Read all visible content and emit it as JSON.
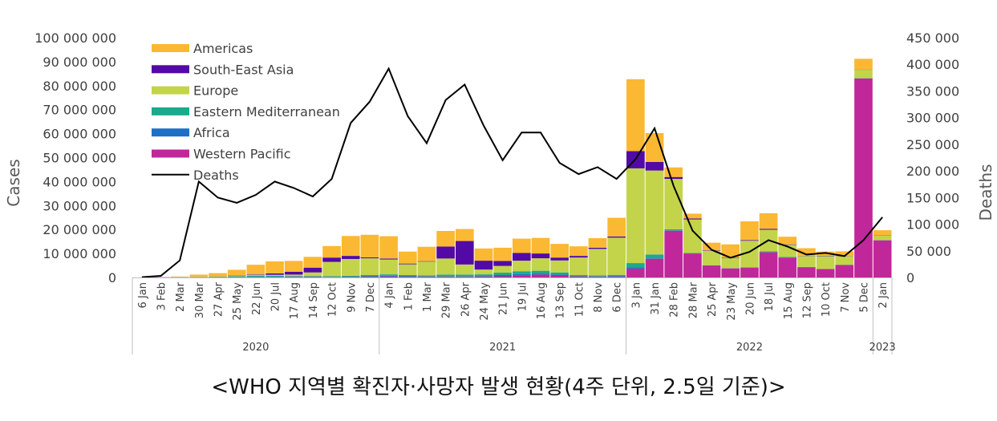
{
  "caption": "<WHO 지역별 확진자·사망자 발생 현황(4주 단위, 2.5일 기준)>",
  "chart_data": {
    "type": "bar",
    "stacked": true,
    "xlabel": "",
    "ylabel": "Cases",
    "y2label": "Deaths",
    "ylim": [
      0,
      100000000
    ],
    "y2lim": [
      0,
      450000
    ],
    "yticks": [
      "0",
      "10 000 000",
      "20 000 000",
      "30 000 000",
      "40 000 000",
      "50 000 000",
      "60 000 000",
      "70 000 000",
      "80 000 000",
      "90 000 000",
      "100 000 000"
    ],
    "y2ticks": [
      "0",
      "50 000",
      "100 000",
      "150 000",
      "200 000",
      "250 000",
      "300 000",
      "350 000",
      "400 000",
      "450 000"
    ],
    "legend_position": "top-left",
    "categories": [
      "6 Jan",
      "3 Feb",
      "2 Mar",
      "30 Mar",
      "27 Apr",
      "25 May",
      "22 Jun",
      "20 Jul",
      "17 Aug",
      "14 Sep",
      "12 Oct",
      "9 Nov",
      "7 Dec",
      "4 Jan",
      "1 Feb",
      "1 Mar",
      "29 Mar",
      "26 Apr",
      "24 May",
      "21 Jun",
      "19 Jul",
      "16 Aug",
      "13 Sep",
      "11 Oct",
      "8 Nov",
      "6 Dec",
      "3 Jan",
      "31 Jan",
      "28 Feb",
      "28 Mar",
      "25 Apr",
      "23 May",
      "20 Jun",
      "18 Jul",
      "15 Aug",
      "12 Sep",
      "10 Oct",
      "7 Nov",
      "5 Dec",
      "2 Jan"
    ],
    "years": [
      {
        "label": "2020",
        "start": 0,
        "end": 12
      },
      {
        "label": "2021",
        "start": 13,
        "end": 25
      },
      {
        "label": "2022",
        "start": 26,
        "end": 38
      },
      {
        "label": "2023",
        "start": 39,
        "end": 39
      }
    ],
    "series": [
      {
        "name": "Western Pacific",
        "color": "#c0279a",
        "values": [
          0,
          0.1,
          0.1,
          0.1,
          0.1,
          0.1,
          0.1,
          0.1,
          0.2,
          0.2,
          0.1,
          0.2,
          0.3,
          0.4,
          0.3,
          0.3,
          0.3,
          0.3,
          0.4,
          0.5,
          0.8,
          1.2,
          1.0,
          0.4,
          0.3,
          0.3,
          3.7,
          7.8,
          19.5,
          10.0,
          5.0,
          3.8,
          4.0,
          10.5,
          8.3,
          4.2,
          3.5,
          5.2,
          83.0,
          15.5
        ]
      },
      {
        "name": "Africa",
        "color": "#1f6fc5",
        "values": [
          0,
          0,
          0,
          0,
          0,
          0.1,
          0.2,
          0.2,
          0.1,
          0.1,
          0.1,
          0.1,
          0.2,
          0.3,
          0.2,
          0.1,
          0.1,
          0.1,
          0.1,
          0.5,
          0.6,
          0.3,
          0.2,
          0.1,
          0.1,
          0.3,
          0.5,
          0.2,
          0.1,
          0,
          0,
          0,
          0.1,
          0,
          0,
          0,
          0,
          0,
          0,
          0
        ]
      },
      {
        "name": "Eastern Mediterranean",
        "color": "#1aaa8c",
        "values": [
          0,
          0,
          0,
          0.1,
          0.2,
          0.3,
          0.4,
          0.4,
          0.3,
          0.3,
          0.3,
          0.4,
          0.5,
          0.6,
          0.5,
          0.5,
          0.8,
          0.8,
          0.8,
          1.0,
          1.2,
          1.3,
          0.9,
          0.5,
          0.5,
          0.5,
          1.8,
          1.6,
          0.5,
          0.2,
          0.1,
          0.1,
          0.2,
          0.4,
          0.3,
          0.2,
          0.1,
          0.1,
          0.1,
          0.1
        ]
      },
      {
        "name": "Europe",
        "color": "#c3d44a",
        "values": [
          0,
          0,
          0.2,
          0.2,
          0.2,
          0.2,
          0.4,
          0.4,
          0.6,
          1.5,
          6.0,
          7.0,
          7.0,
          6.2,
          4.5,
          5.7,
          6.7,
          4.2,
          2.0,
          2.8,
          4.4,
          5.2,
          5.0,
          7.3,
          11.0,
          15.5,
          39.5,
          35.0,
          21.0,
          14.0,
          6.0,
          4.2,
          11.0,
          9.0,
          5.0,
          4.5,
          5.3,
          3.5,
          3.5,
          2.0
        ]
      },
      {
        "name": "South-East Asia",
        "color": "#5309a6",
        "values": [
          0,
          0,
          0,
          0,
          0,
          0.1,
          0.2,
          0.6,
          1.2,
          2.0,
          1.8,
          1.3,
          0.4,
          0.4,
          0.3,
          0.2,
          5.0,
          9.8,
          3.7,
          2.1,
          3.2,
          2.0,
          1.2,
          0.7,
          0.5,
          0.5,
          7.2,
          3.6,
          0.8,
          0.4,
          0.2,
          0.2,
          0.3,
          0.4,
          0.2,
          0.1,
          0.2,
          0.1,
          0.1,
          0.1
        ]
      },
      {
        "name": "Americas",
        "color": "#fbb832",
        "values": [
          0,
          0,
          0.1,
          0.8,
          1.3,
          2.4,
          4.0,
          5.0,
          4.5,
          4.5,
          4.8,
          8.3,
          9.4,
          9.3,
          5.0,
          6.0,
          6.5,
          5.0,
          5.1,
          5.5,
          6.0,
          6.5,
          5.7,
          4.0,
          4.0,
          7.8,
          30.0,
          12.0,
          4.0,
          2.0,
          3.2,
          5.5,
          7.8,
          6.5,
          3.2,
          3.2,
          1.7,
          2.0,
          4.5,
          2.0
        ]
      }
    ],
    "line": {
      "name": "Deaths",
      "color": "#000000",
      "values": [
        500,
        3000,
        32000,
        180000,
        150000,
        140000,
        155000,
        180000,
        168000,
        152000,
        185000,
        290000,
        330000,
        392000,
        303000,
        252000,
        333000,
        362000,
        285000,
        220000,
        272000,
        272000,
        215000,
        194000,
        207000,
        185000,
        222000,
        280000,
        172000,
        88000,
        52000,
        37000,
        48000,
        70000,
        58000,
        43000,
        46000,
        40000,
        70000,
        113000
      ]
    },
    "legend": [
      "Americas",
      "South-East Asia",
      "Europe",
      "Eastern Mediterranean",
      "Africa",
      "Western Pacific",
      "Deaths"
    ]
  }
}
